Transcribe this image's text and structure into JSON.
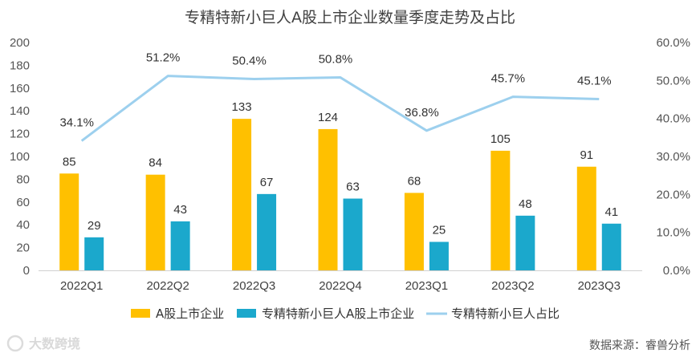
{
  "chart_data": {
    "type": "bar",
    "title": "专精特新小巨人A股上市企业数量季度走势及占比",
    "categories": [
      "2022Q1",
      "2022Q2",
      "2022Q3",
      "2022Q4",
      "2023Q1",
      "2023Q2",
      "2023Q3"
    ],
    "series": [
      {
        "name": "A股上市企业",
        "kind": "bar",
        "axis": "left",
        "color": "#FFC000",
        "values": [
          85,
          84,
          133,
          124,
          68,
          105,
          91
        ],
        "labels": [
          "85",
          "84",
          "133",
          "124",
          "68",
          "105",
          "91"
        ]
      },
      {
        "name": "专精特新小巨人A股上市企业",
        "kind": "bar",
        "axis": "left",
        "color": "#1BA8CC",
        "values": [
          29,
          43,
          67,
          63,
          25,
          48,
          41
        ],
        "labels": [
          "29",
          "43",
          "67",
          "63",
          "25",
          "48",
          "41"
        ]
      },
      {
        "name": "专精特新小巨人占比",
        "kind": "line",
        "axis": "right",
        "color": "#9DD0EE",
        "values": [
          34.1,
          51.2,
          50.4,
          50.8,
          36.8,
          45.7,
          45.1
        ],
        "labels": [
          "34.1%",
          "51.2%",
          "50.4%",
          "50.8%",
          "36.8%",
          "45.7%",
          "45.1%"
        ]
      }
    ],
    "ylim": [
      0,
      200
    ],
    "y2lim": [
      0,
      60
    ],
    "yticks": [
      "0",
      "20",
      "40",
      "60",
      "80",
      "100",
      "120",
      "140",
      "160",
      "180",
      "200"
    ],
    "y2ticks": [
      "0.0%",
      "10.0%",
      "20.0%",
      "30.0%",
      "40.0%",
      "50.0%",
      "60.0%"
    ],
    "legend_position": "bottom",
    "source": "数据来源：睿兽分析",
    "watermark": "亿 大数跨境"
  }
}
